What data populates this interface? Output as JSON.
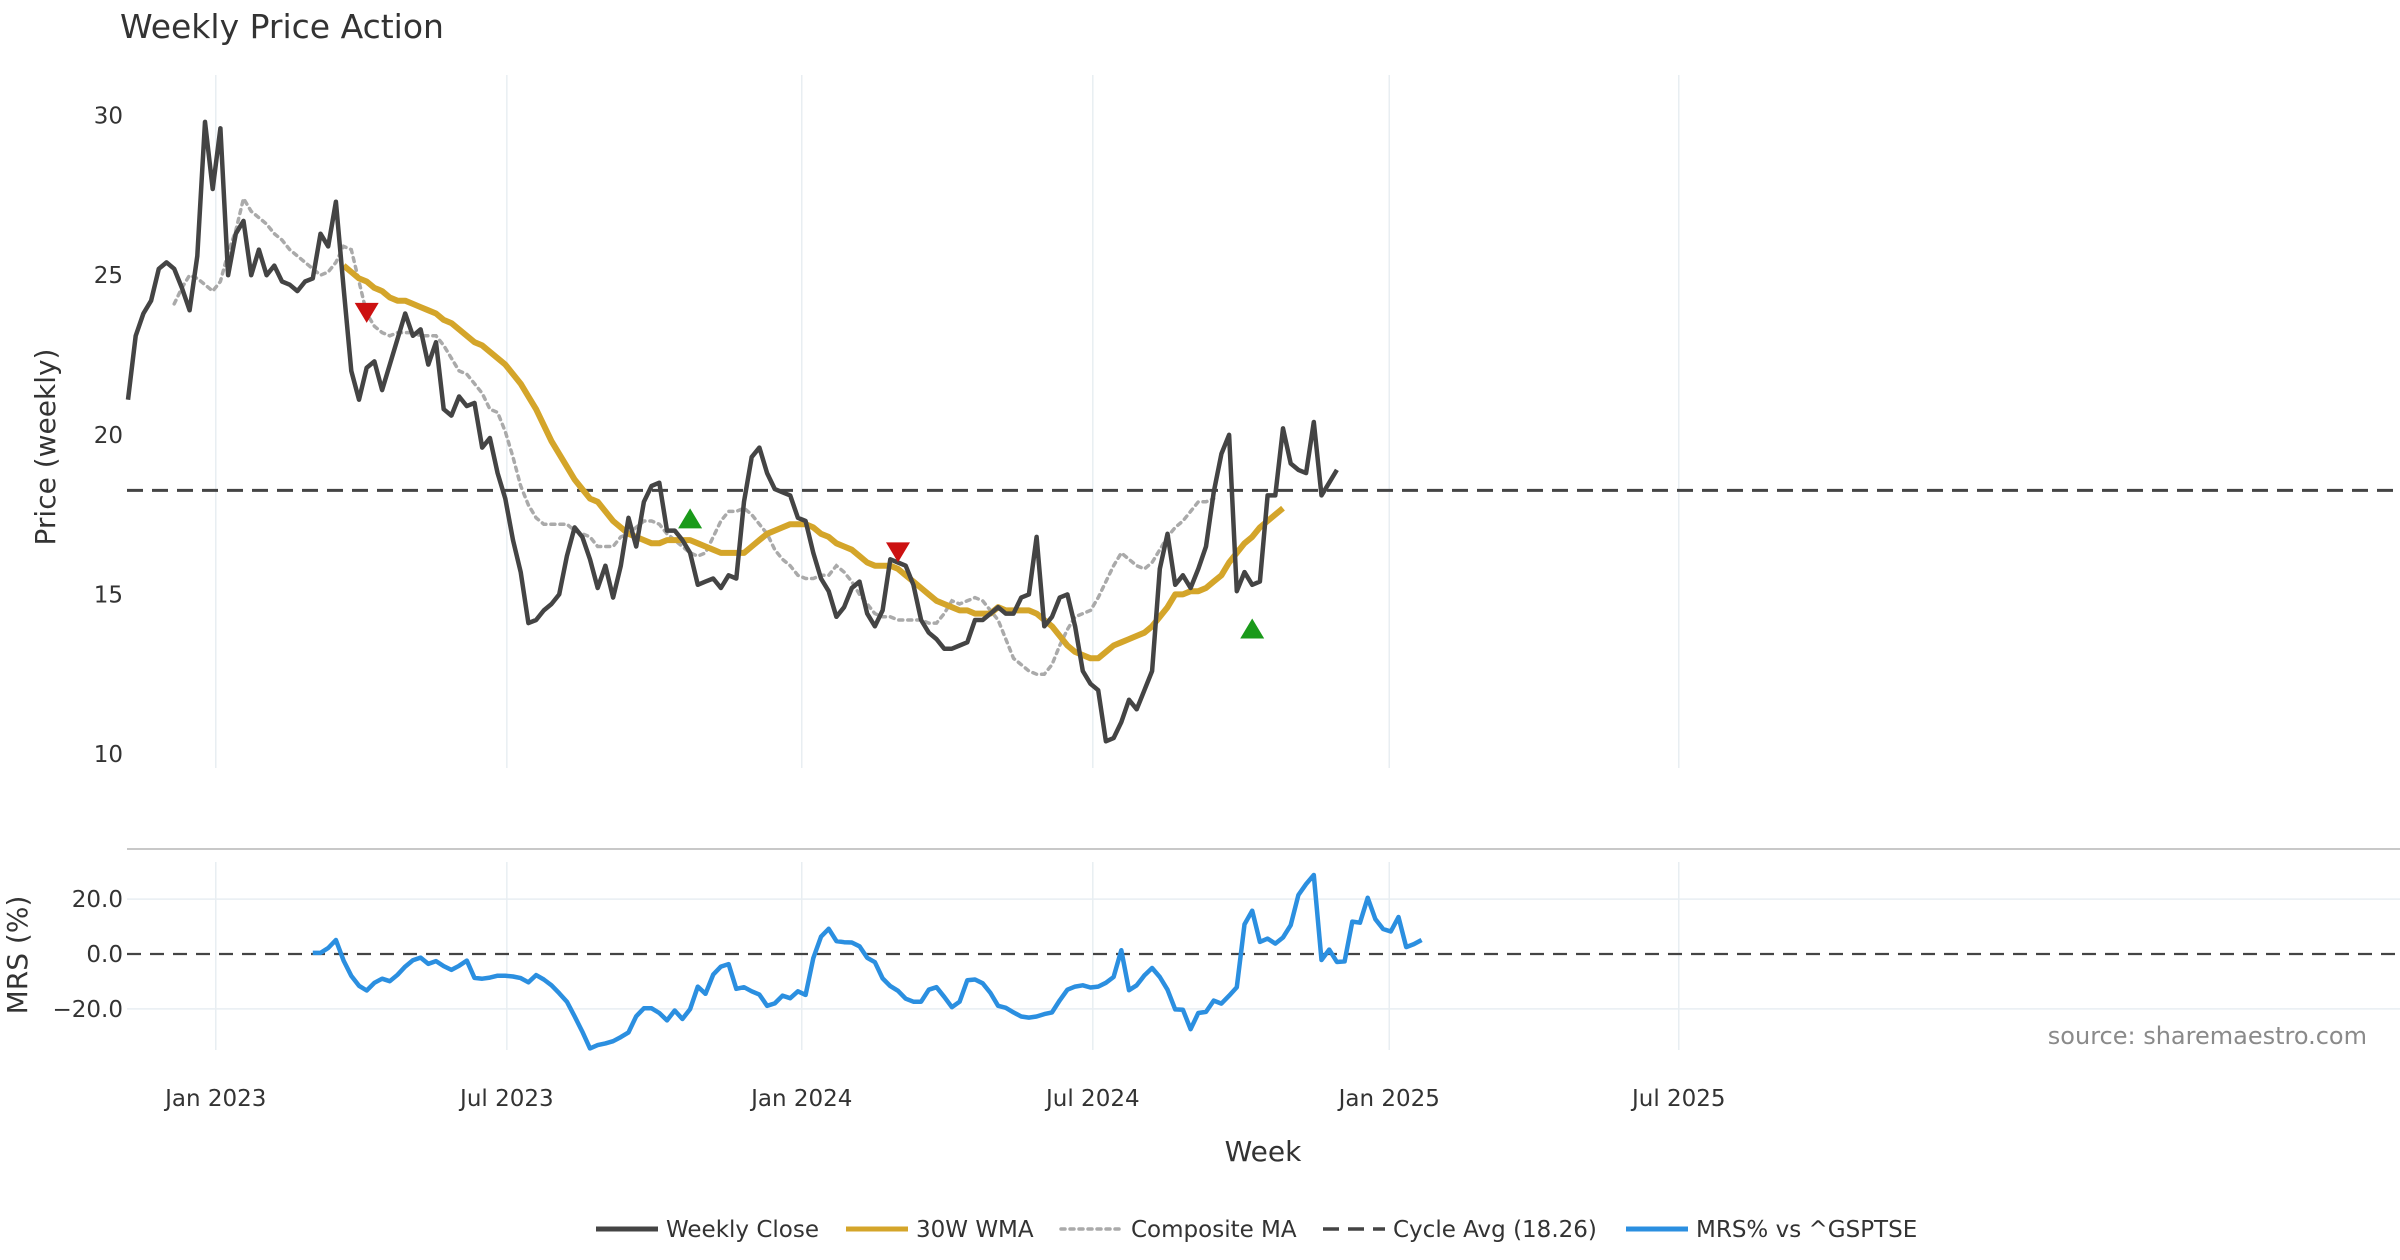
{
  "chart_data": {
    "type": "line",
    "title": "Weekly Price Action",
    "xlabel": "Week",
    "x_ticks": [
      "Jan 2023",
      "Jul 2023",
      "Jan 2024",
      "Jul 2024",
      "Jan 2025",
      "Jul 2025"
    ],
    "source": "source: sharemaestro.com",
    "price_panel": {
      "ylabel": "Price (weekly)",
      "ylim": [
        9.5,
        30.8
      ],
      "y_ticks": [
        "10",
        "15",
        "20",
        "25",
        "30"
      ],
      "y_tick_values": [
        10,
        15,
        20,
        25,
        30
      ],
      "cycle_avg": 18.26,
      "weekly_close": [
        21.1,
        23.1,
        23.8,
        24.2,
        25.2,
        25.4,
        25.2,
        24.6,
        23.9,
        25.6,
        29.8,
        27.7,
        29.6,
        25.0,
        26.3,
        26.7,
        25.0,
        25.8,
        25.0,
        25.3,
        24.8,
        24.7,
        24.5,
        24.8,
        24.9,
        26.3,
        25.9,
        27.3,
        24.6,
        22.0,
        21.1,
        22.1,
        22.3,
        21.4,
        22.2,
        23.0,
        23.8,
        23.1,
        23.3,
        22.2,
        22.9,
        20.8,
        20.6,
        21.2,
        20.9,
        21.0,
        19.6,
        19.9,
        18.8,
        18.0,
        16.7,
        15.7,
        14.1,
        14.2,
        14.5,
        14.7,
        15.0,
        16.2,
        17.1,
        16.8,
        16.1,
        15.2,
        15.9,
        14.9,
        15.9,
        17.4,
        16.5,
        17.9,
        18.4,
        18.5,
        17.0,
        17.0,
        16.7,
        16.3,
        15.3,
        15.4,
        15.5,
        15.2,
        15.6,
        15.5,
        17.9,
        19.3,
        19.6,
        18.8,
        18.3,
        18.2,
        18.1,
        17.4,
        17.3,
        16.3,
        15.5,
        15.1,
        14.3,
        14.6,
        15.2,
        15.4,
        14.4,
        14.0,
        14.5,
        16.1,
        16.0,
        15.9,
        15.3,
        14.2,
        13.8,
        13.6,
        13.3,
        13.3,
        13.4,
        13.5,
        14.2,
        14.2,
        14.4,
        14.6,
        14.4,
        14.4,
        14.9,
        15.0,
        16.8,
        14.0,
        14.3,
        14.9,
        15.0,
        14.0,
        12.6,
        12.2,
        12.0,
        10.4,
        10.5,
        11.0,
        11.7,
        11.4,
        12.0,
        12.6,
        15.8,
        16.9,
        15.3,
        15.6,
        15.2,
        15.8,
        16.5,
        18.2,
        19.4,
        20.0,
        15.1,
        15.7,
        15.3,
        15.4,
        18.1,
        18.1,
        20.2,
        19.1,
        18.9,
        18.8,
        20.4,
        18.1,
        18.5,
        18.9
      ],
      "wma_30": [
        null,
        null,
        null,
        null,
        null,
        null,
        null,
        null,
        null,
        null,
        null,
        null,
        null,
        null,
        null,
        null,
        null,
        null,
        null,
        null,
        null,
        null,
        null,
        null,
        null,
        null,
        null,
        null,
        25.3,
        25.1,
        24.9,
        24.8,
        24.6,
        24.5,
        24.3,
        24.2,
        24.2,
        24.1,
        24.0,
        23.9,
        23.8,
        23.6,
        23.5,
        23.3,
        23.1,
        22.9,
        22.8,
        22.6,
        22.4,
        22.2,
        21.9,
        21.6,
        21.2,
        20.8,
        20.3,
        19.8,
        19.4,
        19.0,
        18.6,
        18.3,
        18.0,
        17.9,
        17.6,
        17.3,
        17.1,
        16.9,
        16.8,
        16.7,
        16.6,
        16.6,
        16.7,
        16.7,
        16.7,
        16.7,
        16.6,
        16.5,
        16.4,
        16.3,
        16.3,
        16.3,
        16.3,
        16.5,
        16.7,
        16.9,
        17.0,
        17.1,
        17.2,
        17.2,
        17.2,
        17.1,
        16.9,
        16.8,
        16.6,
        16.5,
        16.4,
        16.2,
        16.0,
        15.9,
        15.9,
        15.9,
        15.8,
        15.6,
        15.4,
        15.2,
        15.0,
        14.8,
        14.7,
        14.6,
        14.5,
        14.5,
        14.4,
        14.4,
        14.4,
        14.6,
        14.5,
        14.5,
        14.5,
        14.5,
        14.4,
        14.2,
        14.0,
        13.7,
        13.4,
        13.2,
        13.1,
        13.0,
        13.0,
        13.2,
        13.4,
        13.5,
        13.6,
        13.7,
        13.8,
        14.0,
        14.3,
        14.6,
        15.0,
        15.0,
        15.1,
        15.1,
        15.2,
        15.4,
        15.6,
        16.0,
        16.3,
        16.6,
        16.8,
        17.1,
        17.3,
        17.5,
        17.7
      ],
      "composite_ma": [
        null,
        null,
        null,
        null,
        null,
        null,
        24.1,
        24.6,
        25.0,
        24.9,
        24.7,
        24.5,
        24.8,
        25.7,
        26.4,
        27.4,
        27.0,
        26.8,
        26.6,
        26.3,
        26.1,
        25.8,
        25.6,
        25.4,
        25.2,
        25.0,
        25.1,
        25.4,
        25.9,
        25.8,
        24.8,
        23.8,
        23.4,
        23.2,
        23.1,
        23.2,
        23.2,
        23.2,
        23.1,
        23.1,
        23.1,
        22.8,
        22.4,
        22.0,
        21.9,
        21.6,
        21.3,
        20.8,
        20.7,
        20.1,
        19.3,
        18.4,
        17.8,
        17.4,
        17.2,
        17.2,
        17.2,
        17.2,
        17.0,
        16.9,
        16.8,
        16.5,
        16.5,
        16.5,
        16.8,
        16.9,
        17.1,
        17.3,
        17.3,
        17.2,
        16.9,
        16.7,
        16.5,
        16.3,
        16.2,
        16.3,
        16.8,
        17.3,
        17.6,
        17.6,
        17.7,
        17.5,
        17.2,
        16.9,
        16.4,
        16.1,
        15.9,
        15.6,
        15.5,
        15.5,
        15.6,
        15.6,
        15.9,
        15.7,
        15.4,
        15.0,
        14.7,
        14.4,
        14.3,
        14.3,
        14.2,
        14.2,
        14.2,
        14.2,
        14.1,
        14.1,
        14.4,
        14.8,
        14.7,
        14.8,
        14.9,
        14.8,
        14.5,
        14.2,
        13.6,
        13.0,
        12.8,
        12.6,
        12.5,
        12.5,
        12.8,
        13.4,
        13.9,
        14.3,
        14.4,
        14.5,
        14.9,
        15.4,
        15.9,
        16.3,
        16.1,
        15.9,
        15.8,
        16.0,
        16.4,
        16.8,
        17.1,
        17.3,
        17.6,
        17.9,
        17.9,
        18.0
      ],
      "cycle_label": "Cycle Avg (18.26)",
      "markers": [
        {
          "kind": "sell",
          "week": 31,
          "value": 23.85
        },
        {
          "kind": "buy",
          "week": 73,
          "value": 17.35
        },
        {
          "kind": "sell",
          "week": 100,
          "value": 16.35
        },
        {
          "kind": "buy",
          "week": 146,
          "value": 13.9
        }
      ]
    },
    "mrs_panel": {
      "ylabel": "MRS (%)",
      "ylim": [
        -35,
        35
      ],
      "y_ticks": [
        "20.0",
        "0.0",
        "−20.0"
      ],
      "y_tick_values": [
        20,
        0,
        -20
      ],
      "mrs": [
        0.4,
        0.4,
        2.2,
        5.1,
        -2.4,
        -8.0,
        -11.6,
        -13.3,
        -10.5,
        -9.0,
        -9.9,
        -7.6,
        -4.6,
        -2.3,
        -1.3,
        -3.6,
        -2.6,
        -4.4,
        -5.8,
        -4.3,
        -2.4,
        -8.7,
        -9.0,
        -8.6,
        -7.9,
        -7.9,
        -8.2,
        -8.8,
        -10.3,
        -7.7,
        -9.3,
        -11.4,
        -14.3,
        -17.4,
        -22.7,
        -28.3,
        -34.4,
        -33.2,
        -32.6,
        -31.8,
        -30.3,
        -28.6,
        -22.7,
        -19.8,
        -19.8,
        -21.5,
        -24.2,
        -20.6,
        -23.7,
        -20.1,
        -11.9,
        -14.5,
        -7.5,
        -4.6,
        -3.7,
        -12.7,
        -12.1,
        -13.6,
        -14.8,
        -18.9,
        -18.0,
        -15.2,
        -16.1,
        -13.6,
        -14.9,
        -1.5,
        6.3,
        9.2,
        4.7,
        4.3,
        4.2,
        2.8,
        -1.4,
        -3.0,
        -8.9,
        -11.7,
        -13.4,
        -16.3,
        -17.4,
        -17.4,
        -13.0,
        -12.1,
        -15.6,
        -19.4,
        -17.4,
        -9.6,
        -9.3,
        -10.7,
        -14.2,
        -18.9,
        -19.6,
        -21.3,
        -22.8,
        -23.2,
        -22.8,
        -21.9,
        -21.3,
        -16.9,
        -13.0,
        -11.9,
        -11.4,
        -12.2,
        -11.9,
        -10.5,
        -8.4,
        1.4,
        -13.2,
        -11.4,
        -7.8,
        -5.1,
        -8.4,
        -13.0,
        -20.2,
        -20.3,
        -27.4,
        -21.5,
        -21.1,
        -17.0,
        -18.1,
        -15.2,
        -12.1,
        10.8,
        15.8,
        4.4,
        5.6,
        3.8,
        6.0,
        10.5,
        21.5,
        25.5,
        28.8,
        -2.2,
        1.6,
        -2.9,
        -2.7,
        11.8,
        11.4,
        20.5,
        12.7,
        9.1,
        8.2,
        13.5,
        2.5,
        3.6,
        5.1
      ],
      "mrs_start_week": 24
    },
    "legend": [
      {
        "label": "Weekly Close",
        "color": "#444444",
        "style": "solid"
      },
      {
        "label": "30W WMA",
        "color": "#d4a52a",
        "style": "solid"
      },
      {
        "label": "Composite MA",
        "color": "#aaaaaa",
        "style": "dotted"
      },
      {
        "label": "Cycle Avg (18.26)",
        "color": "#444444",
        "style": "dashed"
      },
      {
        "label": "MRS% vs ^GSPTSE",
        "color": "#2b8fe0",
        "style": "solid"
      }
    ],
    "colors": {
      "close": "#444444",
      "wma": "#d4a52a",
      "composite": "#aaaaaa",
      "cycle": "#444444",
      "mrs": "#2b8fe0",
      "buy": "#1a9a1a",
      "sell": "#cc1111",
      "grid": "#e8eef2"
    }
  }
}
